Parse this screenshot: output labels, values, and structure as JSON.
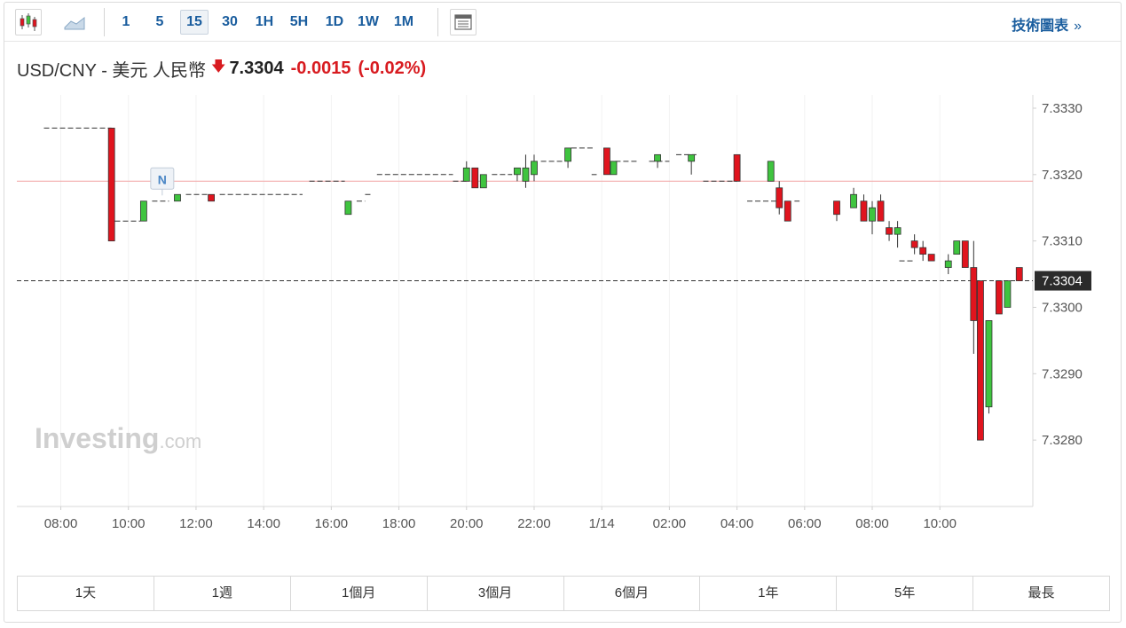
{
  "toolbar": {
    "timeframes": [
      "1",
      "5",
      "15",
      "30",
      "1H",
      "5H",
      "1D",
      "1W",
      "1M"
    ],
    "active_timeframe": "15",
    "tech_chart_label": "技術圖表",
    "tech_chart_arrow": "»",
    "icons": [
      "candlestick-icon",
      "area-chart-icon",
      "news-panel-icon"
    ]
  },
  "quote": {
    "pair": "USD/CNY - 美元 人民幣",
    "direction_icon": "down-arrow-icon",
    "price": "7.3304",
    "change": "-0.0015",
    "change_pct": "(-0.02%)"
  },
  "ranges": [
    "1天",
    "1週",
    "1個月",
    "3個月",
    "6個月",
    "1年",
    "5年",
    "最長"
  ],
  "colors": {
    "up": "#3fc43f",
    "down": "#e0141e",
    "accent": "#1a5d9e",
    "last_price_bg": "#2b2b2b",
    "ref_line": "#f2a3a3"
  },
  "chart_data": {
    "type": "candlestick",
    "x_ticks": [
      "08:00",
      "10:00",
      "12:00",
      "14:00",
      "16:00",
      "18:00",
      "20:00",
      "22:00",
      "1/14",
      "02:00",
      "04:00",
      "06:00",
      "08:00",
      "10:00"
    ],
    "y_ticks": [
      "7.3330",
      "7.3320",
      "7.3310",
      "7.3300",
      "7.3290",
      "7.3280"
    ],
    "ylim": [
      7.327,
      7.3332
    ],
    "last_price": 7.3304,
    "last_price_label": "7.3304",
    "reference_price": 7.3319,
    "news_marker": {
      "label": "N",
      "x": "11:00"
    },
    "watermark": {
      "main": "Investing",
      "suffix": ".com"
    },
    "flat_segments": [
      {
        "from": 7.5,
        "to": 9.5,
        "price": 7.3327
      },
      {
        "from": 9.6,
        "to": 10.35,
        "price": 7.3313
      },
      {
        "from": 10.7,
        "to": 11.2,
        "price": 7.3316
      },
      {
        "from": 11.7,
        "to": 12.4,
        "price": 7.3317
      },
      {
        "from": 12.7,
        "to": 15.15,
        "price": 7.3317
      },
      {
        "from": 15.35,
        "to": 16.4,
        "price": 7.3319
      },
      {
        "from": 16.75,
        "to": 17.0,
        "price": 7.3316
      },
      {
        "from": 17.0,
        "to": 17.2,
        "price": 7.3317
      },
      {
        "from": 17.35,
        "to": 19.6,
        "price": 7.332
      },
      {
        "from": 19.6,
        "to": 20.0,
        "price": 7.3319
      },
      {
        "from": 20.75,
        "to": 21.35,
        "price": 7.332
      },
      {
        "from": 22.2,
        "to": 22.85,
        "price": 7.3322
      },
      {
        "from": 23.1,
        "to": 23.8,
        "price": 7.3324
      },
      {
        "from": 23.7,
        "to": 23.85,
        "price": 7.332
      },
      {
        "from": 24.4,
        "to": 25.1,
        "price": 7.3322
      },
      {
        "from": 25.4,
        "to": 26.0,
        "price": 7.3322
      },
      {
        "from": 26.2,
        "to": 26.8,
        "price": 7.3323
      },
      {
        "from": 27.0,
        "to": 28.0,
        "price": 7.3319
      },
      {
        "from": 28.3,
        "to": 29.15,
        "price": 7.3316
      },
      {
        "from": 29.7,
        "to": 29.85,
        "price": 7.3316
      },
      {
        "from": 32.8,
        "to": 33.2,
        "price": 7.3307
      }
    ],
    "candles": [
      {
        "t": 9.5,
        "o": 7.3327,
        "h": 7.3327,
        "l": 7.331,
        "c": 7.331
      },
      {
        "t": 10.45,
        "o": 7.3313,
        "h": 7.3316,
        "l": 7.3313,
        "c": 7.3316
      },
      {
        "t": 11.45,
        "o": 7.3316,
        "h": 7.3317,
        "l": 7.3316,
        "c": 7.3317
      },
      {
        "t": 12.45,
        "o": 7.3317,
        "h": 7.3317,
        "l": 7.3316,
        "c": 7.3316
      },
      {
        "t": 16.5,
        "o": 7.3314,
        "h": 7.3316,
        "l": 7.3314,
        "c": 7.3316
      },
      {
        "t": 20.0,
        "o": 7.3319,
        "h": 7.3322,
        "l": 7.3319,
        "c": 7.3321
      },
      {
        "t": 20.25,
        "o": 7.3321,
        "h": 7.3321,
        "l": 7.3318,
        "c": 7.3318
      },
      {
        "t": 20.5,
        "o": 7.3318,
        "h": 7.332,
        "l": 7.3318,
        "c": 7.332
      },
      {
        "t": 21.5,
        "o": 7.332,
        "h": 7.3321,
        "l": 7.3319,
        "c": 7.3321
      },
      {
        "t": 21.75,
        "o": 7.3319,
        "h": 7.3323,
        "l": 7.3318,
        "c": 7.3321
      },
      {
        "t": 22.0,
        "o": 7.332,
        "h": 7.3323,
        "l": 7.3319,
        "c": 7.3322
      },
      {
        "t": 23.0,
        "o": 7.3322,
        "h": 7.3324,
        "l": 7.3321,
        "c": 7.3324
      },
      {
        "t": 24.15,
        "o": 7.3324,
        "h": 7.3324,
        "l": 7.332,
        "c": 7.332
      },
      {
        "t": 24.35,
        "o": 7.332,
        "h": 7.3322,
        "l": 7.332,
        "c": 7.3322
      },
      {
        "t": 25.65,
        "o": 7.3322,
        "h": 7.3323,
        "l": 7.3321,
        "c": 7.3323
      },
      {
        "t": 26.65,
        "o": 7.3322,
        "h": 7.3323,
        "l": 7.332,
        "c": 7.3323
      },
      {
        "t": 28.0,
        "o": 7.3323,
        "h": 7.3323,
        "l": 7.3319,
        "c": 7.3319
      },
      {
        "t": 29.0,
        "o": 7.3319,
        "h": 7.3322,
        "l": 7.3319,
        "c": 7.3322
      },
      {
        "t": 29.25,
        "o": 7.3318,
        "h": 7.3319,
        "l": 7.3314,
        "c": 7.3315
      },
      {
        "t": 29.5,
        "o": 7.3316,
        "h": 7.3316,
        "l": 7.3313,
        "c": 7.3313
      },
      {
        "t": 30.95,
        "o": 7.3316,
        "h": 7.3316,
        "l": 7.3313,
        "c": 7.3314
      },
      {
        "t": 31.45,
        "o": 7.3315,
        "h": 7.3318,
        "l": 7.3315,
        "c": 7.3317
      },
      {
        "t": 31.75,
        "o": 7.3316,
        "h": 7.3317,
        "l": 7.3313,
        "c": 7.3313
      },
      {
        "t": 32.0,
        "o": 7.3313,
        "h": 7.3316,
        "l": 7.3311,
        "c": 7.3315
      },
      {
        "t": 32.25,
        "o": 7.3316,
        "h": 7.3317,
        "l": 7.3313,
        "c": 7.3313
      },
      {
        "t": 32.5,
        "o": 7.3312,
        "h": 7.3313,
        "l": 7.331,
        "c": 7.3311
      },
      {
        "t": 32.75,
        "o": 7.3311,
        "h": 7.3313,
        "l": 7.3309,
        "c": 7.3312
      },
      {
        "t": 33.25,
        "o": 7.331,
        "h": 7.3311,
        "l": 7.3308,
        "c": 7.3309
      },
      {
        "t": 33.5,
        "o": 7.3309,
        "h": 7.331,
        "l": 7.3307,
        "c": 7.3308
      },
      {
        "t": 33.75,
        "o": 7.3308,
        "h": 7.3308,
        "l": 7.3307,
        "c": 7.3307
      },
      {
        "t": 34.25,
        "o": 7.3306,
        "h": 7.3308,
        "l": 7.3305,
        "c": 7.3307
      },
      {
        "t": 34.5,
        "o": 7.3308,
        "h": 7.331,
        "l": 7.3308,
        "c": 7.331
      },
      {
        "t": 34.75,
        "o": 7.331,
        "h": 7.331,
        "l": 7.3306,
        "c": 7.3306
      },
      {
        "t": 35.0,
        "o": 7.3306,
        "h": 7.331,
        "l": 7.3293,
        "c": 7.3298
      },
      {
        "t": 35.2,
        "o": 7.3304,
        "h": 7.3304,
        "l": 7.328,
        "c": 7.328
      },
      {
        "t": 35.45,
        "o": 7.3285,
        "h": 7.3298,
        "l": 7.3284,
        "c": 7.3298
      },
      {
        "t": 35.75,
        "o": 7.3304,
        "h": 7.3304,
        "l": 7.3299,
        "c": 7.3299
      },
      {
        "t": 36.0,
        "o": 7.33,
        "h": 7.3304,
        "l": 7.33,
        "c": 7.3304
      },
      {
        "t": 36.35,
        "o": 7.3306,
        "h": 7.3306,
        "l": 7.3304,
        "c": 7.3304
      }
    ]
  }
}
